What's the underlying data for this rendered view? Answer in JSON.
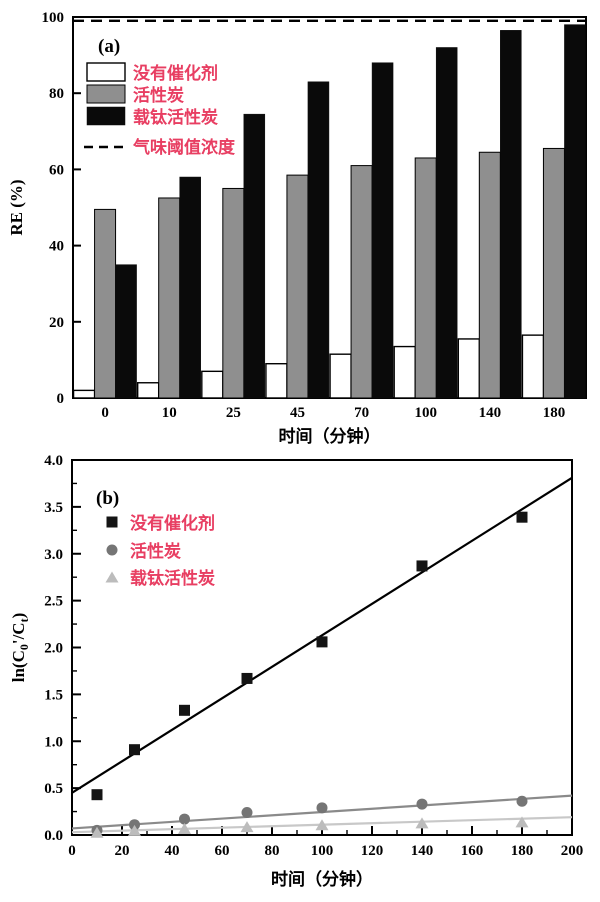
{
  "colors": {
    "legend_text": "#e83e62",
    "bar_white_fill": "#ffffff",
    "bar_gray_fill": "#8f8f8f",
    "bar_black_fill": "#0a0a0a",
    "axis": "#000000",
    "scatter_black": "#141414",
    "scatter_gray": "#757575",
    "scatter_lightgray": "#bcbcbc",
    "fit_line_black": "#000000",
    "fit_line_gray": "#8a8a8a",
    "fit_line_lightgray": "#c8c8c8"
  },
  "chart_data": [
    {
      "id": "panel-a",
      "type": "bar",
      "panel_label": "(a)",
      "xlabel": "时间（分钟）",
      "ylabel": "RE (%)",
      "ylim": [
        0,
        100
      ],
      "yticks": [
        "0",
        "20",
        "40",
        "60",
        "80",
        "100"
      ],
      "ytick_values": [
        0,
        20,
        40,
        60,
        80,
        100
      ],
      "categories": [
        "0",
        "10",
        "25",
        "45",
        "70",
        "100",
        "140",
        "180"
      ],
      "grid": false,
      "legend_position": "upper-left",
      "series": [
        {
          "name": "没有催化剂",
          "style": "white",
          "values": [
            2,
            4,
            7,
            9,
            11.5,
            13.5,
            15.5,
            16.5
          ]
        },
        {
          "name": "活性炭",
          "style": "gray",
          "values": [
            49.5,
            52.5,
            55,
            58.5,
            61,
            63,
            64.5,
            65.5
          ]
        },
        {
          "name": "载钛活性炭",
          "style": "black",
          "values": [
            35,
            58,
            74.5,
            83,
            88,
            92,
            96.5,
            98
          ]
        }
      ],
      "reference_line": {
        "name": "气味阈值浓度",
        "value": 99,
        "style": "dashed"
      }
    },
    {
      "id": "panel-b",
      "type": "scatter",
      "panel_label": "(b)",
      "xlabel": "时间（分钟）",
      "ylabel": "ln(C0'/Ct)",
      "ylabel_parts": [
        {
          "t": "ln(C",
          "sub": false
        },
        {
          "t": "0",
          "sub": true
        },
        {
          "t": "'/C",
          "sub": false
        },
        {
          "t": "t",
          "sub": true
        },
        {
          "t": ")",
          "sub": false
        }
      ],
      "xlim": [
        0,
        200
      ],
      "ylim": [
        0,
        4.0
      ],
      "xticks": [
        "0",
        "20",
        "40",
        "60",
        "80",
        "100",
        "120",
        "140",
        "160",
        "180",
        "200"
      ],
      "xtick_values": [
        0,
        20,
        40,
        60,
        80,
        100,
        120,
        140,
        160,
        180,
        200
      ],
      "x_minor_step": 10,
      "yticks": [
        "0.0",
        "0.5",
        "1.0",
        "1.5",
        "2.0",
        "2.5",
        "3.0",
        "3.5",
        "4.0"
      ],
      "ytick_values": [
        0,
        0.5,
        1.0,
        1.5,
        2.0,
        2.5,
        3.0,
        3.5,
        4.0
      ],
      "y_minor_step": 0.25,
      "grid": false,
      "legend_position": "upper-left",
      "x": [
        10,
        25,
        45,
        70,
        100,
        140,
        180
      ],
      "series": [
        {
          "name": "没有催化剂",
          "marker": "square",
          "values": [
            0.43,
            0.91,
            1.33,
            1.67,
            2.06,
            2.87,
            3.39
          ],
          "fit_line": {
            "x": [
              0,
              200
            ],
            "y": [
              0.45,
              3.81
            ]
          }
        },
        {
          "name": "活性炭",
          "marker": "circle",
          "values": [
            0.05,
            0.11,
            0.17,
            0.24,
            0.29,
            0.33,
            0.36
          ],
          "fit_line": {
            "x": [
              0,
              200
            ],
            "y": [
              0.07,
              0.42
            ]
          }
        },
        {
          "name": "载钛活性炭",
          "marker": "triangle",
          "values": [
            0.03,
            0.05,
            0.07,
            0.09,
            0.11,
            0.13,
            0.14
          ],
          "fit_line": {
            "x": [
              0,
              200
            ],
            "y": [
              0.03,
              0.19
            ]
          }
        }
      ]
    }
  ]
}
